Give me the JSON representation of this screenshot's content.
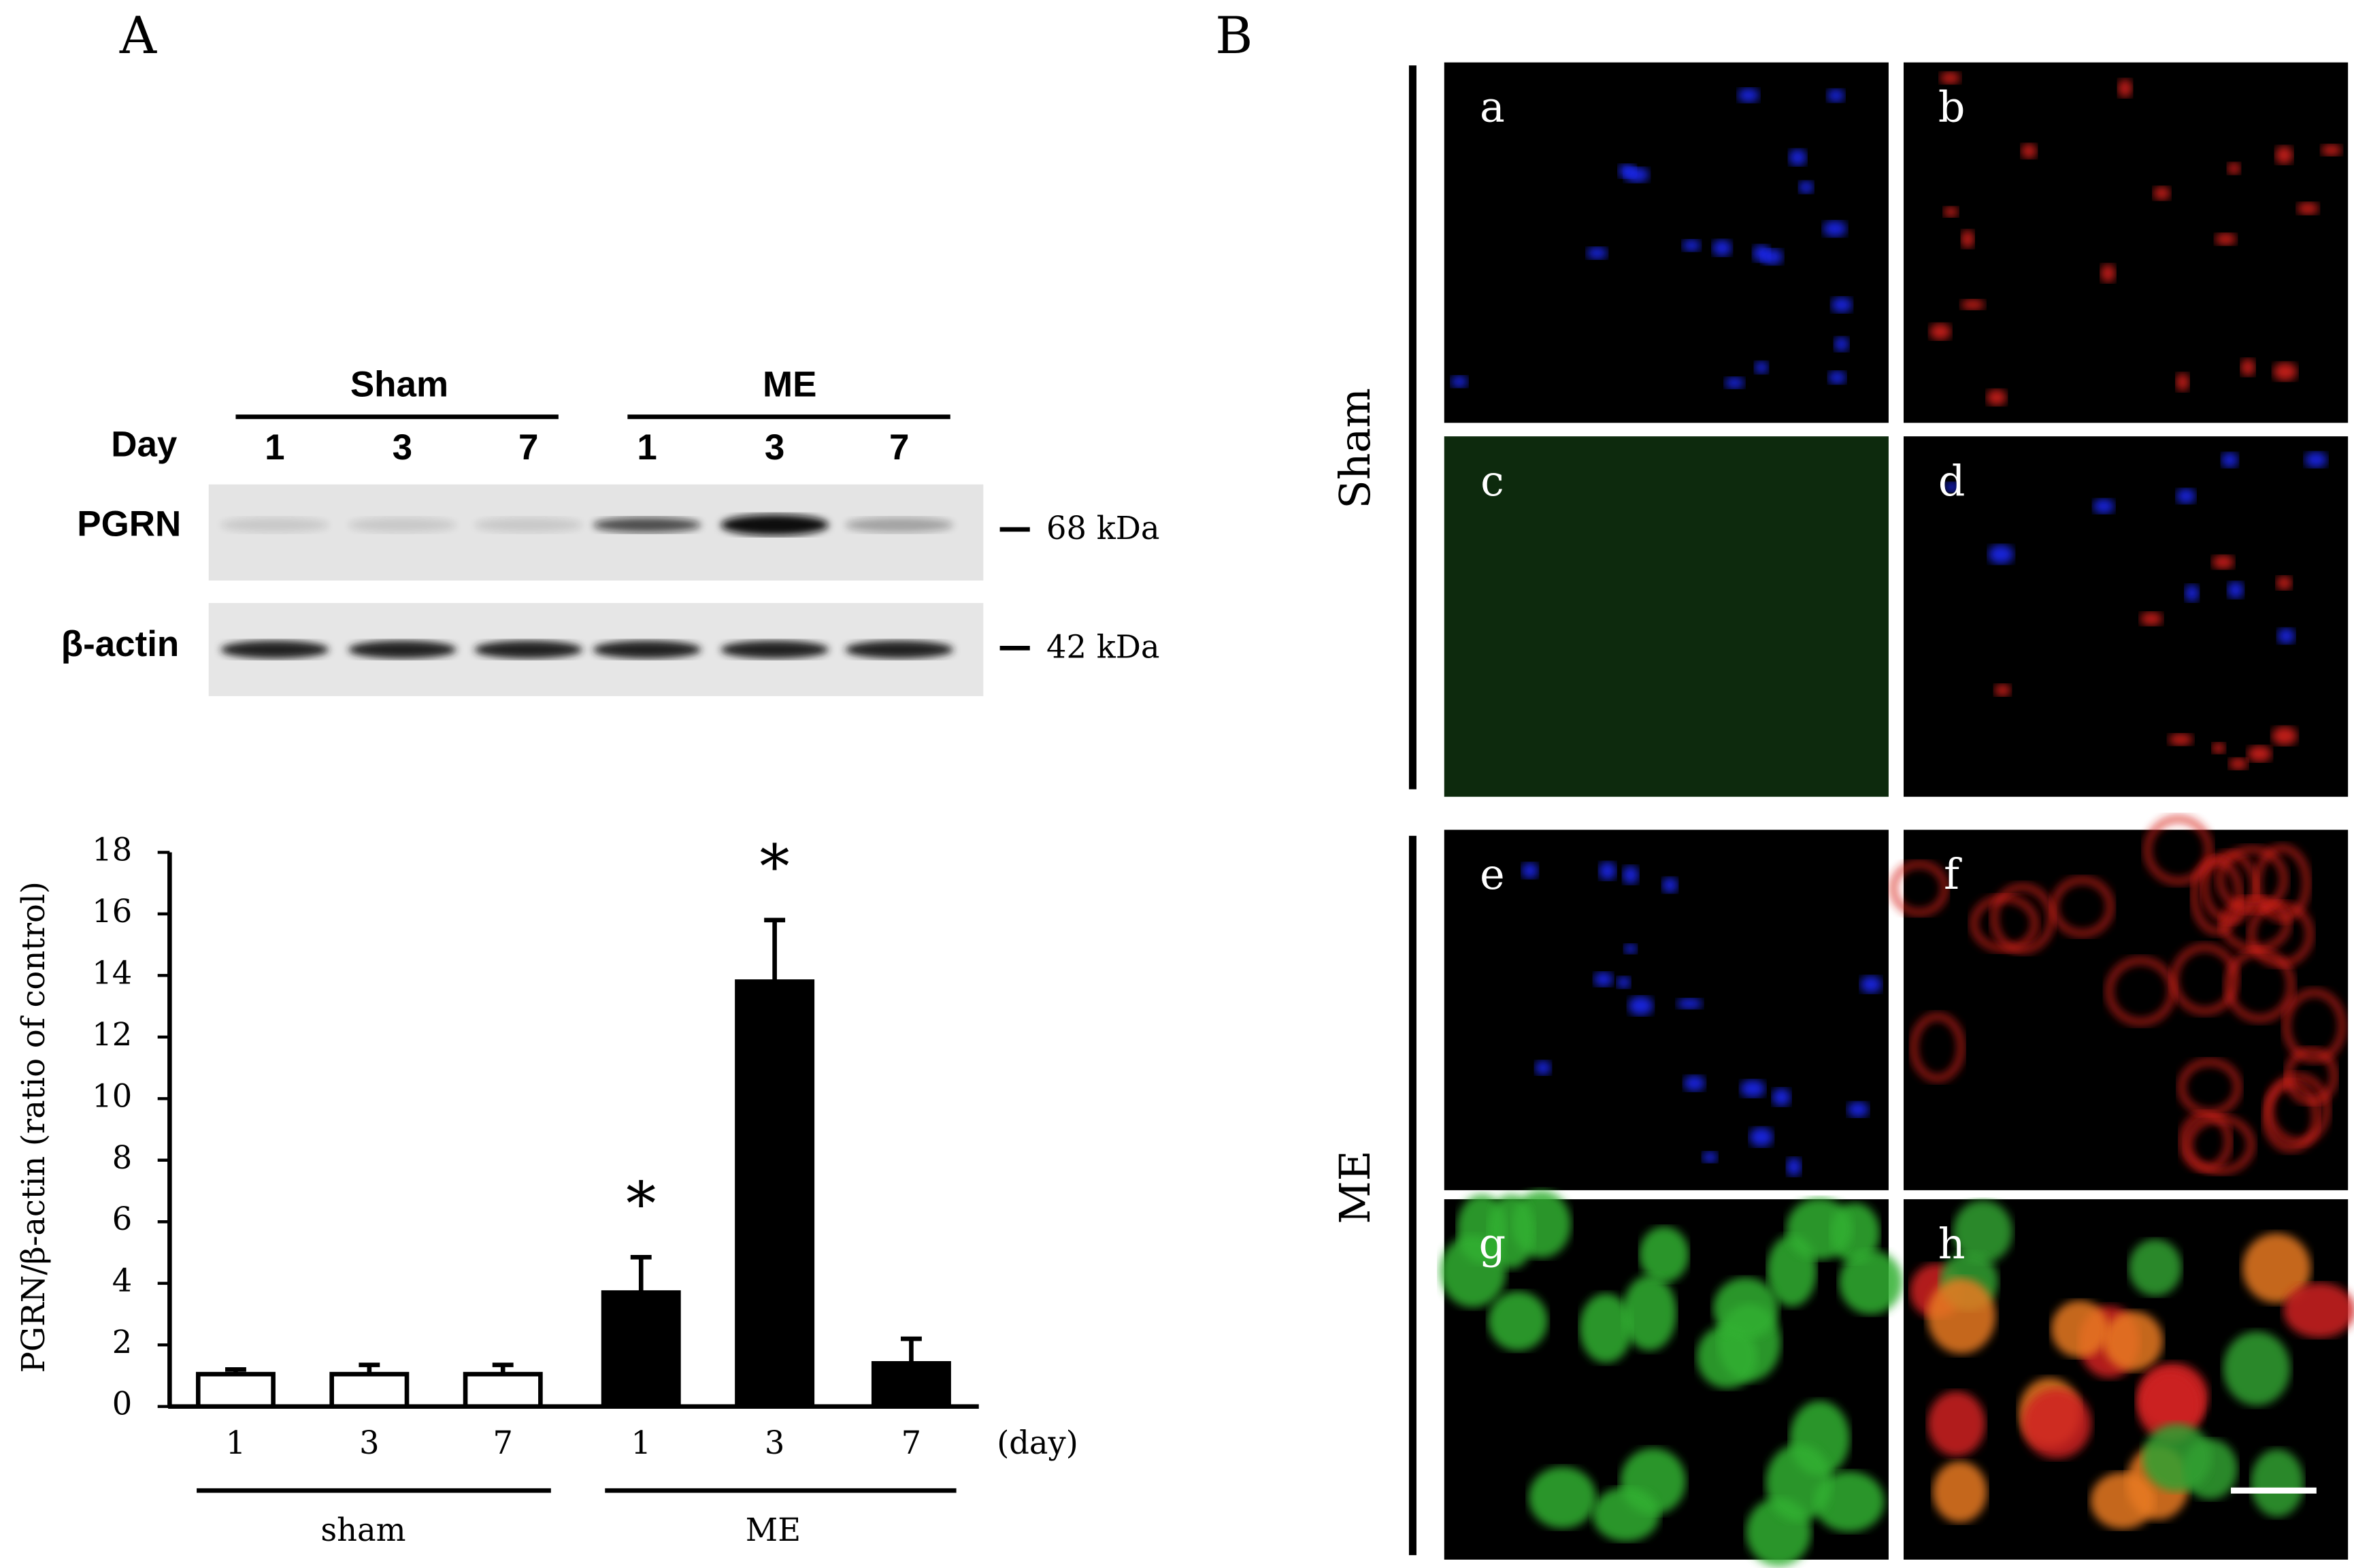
{
  "panel_labels": [
    "A",
    "B"
  ],
  "blot": {
    "groups": [
      "Sham",
      "ME"
    ],
    "day_label": "Day",
    "lanes": [
      "1",
      "3",
      "7",
      "1",
      "3",
      "7"
    ],
    "rows": [
      {
        "name": "PGRN",
        "size": "68 kDa"
      },
      {
        "name": "β-actin",
        "size": "42 kDa"
      }
    ]
  },
  "chart_data": {
    "type": "bar",
    "y_label": "PGRN/β-actin (ratio of control)",
    "x_unit_label": "(day)",
    "categories": [
      "1",
      "3",
      "7",
      "1",
      "3",
      "7"
    ],
    "groups": [
      "sham",
      "ME"
    ],
    "values": [
      1.05,
      1.05,
      1.05,
      3.7,
      13.8,
      1.4
    ],
    "errors": [
      0.15,
      0.3,
      0.3,
      1.15,
      2.0,
      0.8
    ],
    "colors": [
      "#ffffff",
      "#ffffff",
      "#ffffff",
      "#000000",
      "#000000",
      "#000000"
    ],
    "ylim": [
      0,
      18
    ],
    "yticks": [
      0,
      2,
      4,
      6,
      8,
      10,
      12,
      14,
      16,
      18
    ],
    "annotations": [
      "*",
      "*"
    ]
  },
  "micrographs": {
    "row_labels": [
      "Sham",
      "ME"
    ],
    "panels": [
      "a",
      "b",
      "c",
      "d",
      "e",
      "f",
      "g",
      "h"
    ]
  }
}
